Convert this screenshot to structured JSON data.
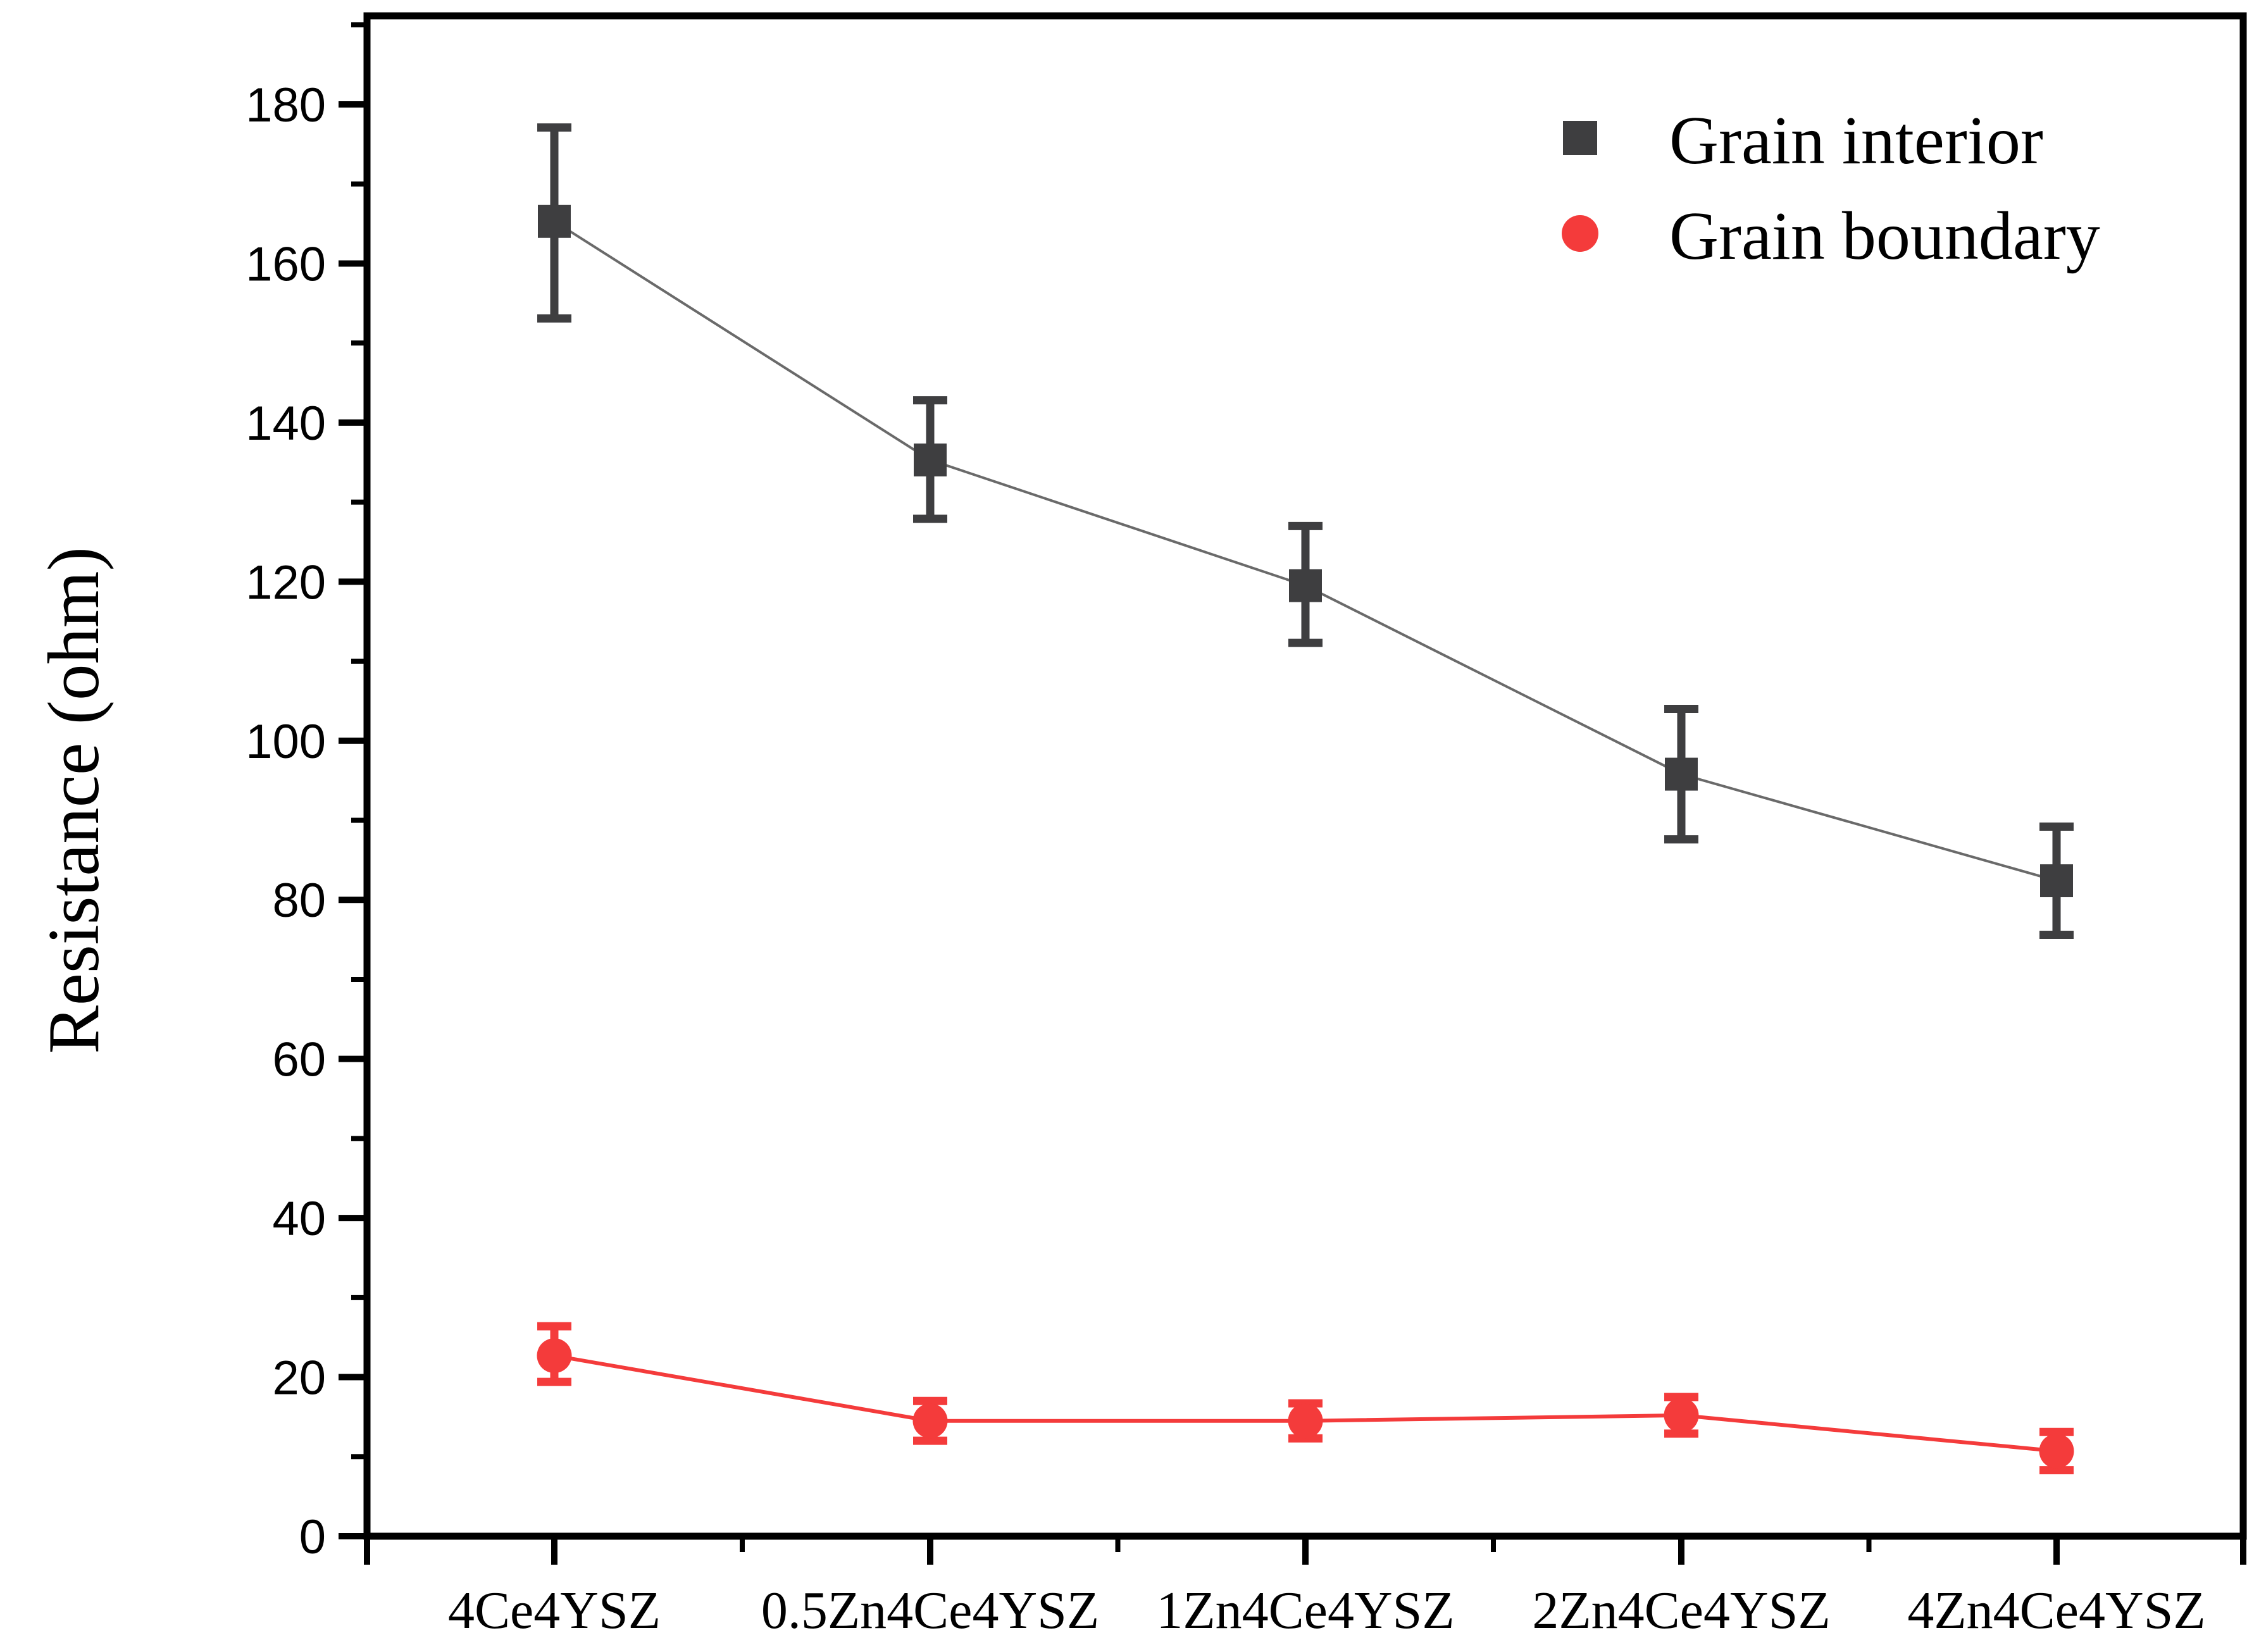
{
  "page": {
    "background": "#ffffff",
    "axis_color": "#000000"
  },
  "chart_data": {
    "type": "line",
    "title": "",
    "xlabel": "",
    "ylabel": "Resistance (ohm)",
    "categories": [
      "4Ce4YSZ",
      "0.5Zn4Ce4YSZ",
      "1Zn4Ce4YSZ",
      "2Zn4Ce4YSZ",
      "4Zn4Ce4YSZ"
    ],
    "ylim": [
      0,
      191
    ],
    "y_major_ticks": [
      0,
      20,
      40,
      60,
      80,
      100,
      120,
      140,
      160,
      180
    ],
    "y_minor_tick_step": 10,
    "grid": false,
    "legend_position": "top-right",
    "frame": "full-box",
    "series": [
      {
        "name": "Grain interior",
        "marker": "square",
        "marker_color": "#3e3e40",
        "line_color": "#6a6a6a",
        "values": [
          165.3,
          135.3,
          119.5,
          95.8,
          82.4
        ],
        "err_up": [
          11.8,
          7.5,
          7.5,
          8.2,
          6.8
        ],
        "err_down": [
          12.2,
          7.4,
          7.2,
          8.2,
          6.8
        ]
      },
      {
        "name": "Grain boundary",
        "marker": "circle",
        "marker_color": "#f43b3b",
        "line_color": "#f43b3b",
        "values": [
          22.7,
          14.5,
          14.5,
          15.2,
          10.7
        ],
        "err_up": [
          3.7,
          2.5,
          2.2,
          2.3,
          2.4
        ],
        "err_down": [
          3.3,
          2.5,
          2.2,
          2.3,
          2.4
        ]
      }
    ]
  }
}
